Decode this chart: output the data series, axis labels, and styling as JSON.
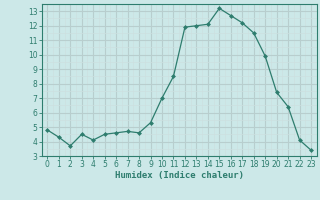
{
  "x": [
    0,
    1,
    2,
    3,
    4,
    5,
    6,
    7,
    8,
    9,
    10,
    11,
    12,
    13,
    14,
    15,
    16,
    17,
    18,
    19,
    20,
    21,
    22,
    23
  ],
  "y": [
    4.8,
    4.3,
    3.7,
    4.5,
    4.1,
    4.5,
    4.6,
    4.7,
    4.6,
    5.3,
    7.0,
    8.5,
    11.9,
    12.0,
    12.1,
    13.2,
    12.7,
    12.2,
    11.5,
    9.9,
    7.4,
    6.4,
    4.1,
    3.4
  ],
  "line_color": "#2e7d6e",
  "marker": "D",
  "marker_size": 2.5,
  "bg_color": "#cce8e8",
  "grid_major_color": "#b8cece",
  "grid_minor_color": "#cce0e0",
  "axis_color": "#2e7d6e",
  "xlabel": "Humidex (Indice chaleur)",
  "xlim": [
    -0.5,
    23.5
  ],
  "ylim": [
    3,
    13.5
  ],
  "yticks": [
    3,
    4,
    5,
    6,
    7,
    8,
    9,
    10,
    11,
    12,
    13
  ],
  "xticks": [
    0,
    1,
    2,
    3,
    4,
    5,
    6,
    7,
    8,
    9,
    10,
    11,
    12,
    13,
    14,
    15,
    16,
    17,
    18,
    19,
    20,
    21,
    22,
    23
  ]
}
